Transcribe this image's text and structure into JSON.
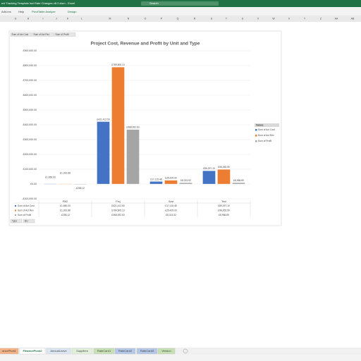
{
  "window": {
    "title": "ect Tracking Template incl Rate Changes v8.2.xlsm - Excel",
    "search": "Search",
    "ribbon_tabs": [
      "Add-ins",
      "Help",
      "PivotTable Analyze",
      "Design"
    ],
    "columns": [
      "G",
      "H",
      "I",
      "J",
      "K",
      "L",
      "M",
      "N",
      "O",
      "P",
      "Q",
      "R",
      "S",
      "T",
      "U",
      "V",
      "W",
      "X",
      "Y",
      "Z",
      "AA",
      "AB"
    ],
    "sheet_tabs": [
      "ancePivot1",
      "FinancePivot2",
      "AnnualLeave",
      "Suppliers",
      "RateCard1",
      "RateCard2",
      "RateCard3",
      "Version"
    ],
    "active_tab": 1,
    "field_buttons": [
      "Sum of Act Cost",
      "Sum of Act Rev",
      "Sum of Profit"
    ],
    "filter_buttons": [
      "Type",
      "BU"
    ]
  },
  "chart_data": {
    "type": "bar",
    "title": "Project Cost, Revenue and Profit by Unit and Type",
    "categories": [
      "PM2",
      "Proj",
      "Sust",
      "Test"
    ],
    "series": [
      {
        "name": "Sum of Act Cost",
        "color": "#4472c4",
        "values": [
          1650,
          421412.5,
          17115.48,
          89297.1
        ],
        "value_labels": [
          "£1,650.00",
          "£421,412.50",
          "£17,115.48",
          "£89,297.10"
        ]
      },
      {
        "name": "Sum of Act Rev",
        "color": "#ed7d31",
        "values": [
          1391.88,
          789505.13,
          25429,
          98265.99
        ],
        "value_labels": [
          "£1,391.88",
          "£789,505.13",
          "£25,429.00",
          "£98,265.99"
        ]
      },
      {
        "name": "Sum of Profit",
        "color": "#a5a5a5",
        "values": [
          -258.12,
          368092.63,
          8313.52,
          8968.89
        ],
        "value_labels": [
          "-£258.12",
          "£368,092.63",
          "£8,313.52",
          "£8,968.89"
        ]
      }
    ],
    "ylim": [
      -100000,
      900000
    ],
    "yticks": [
      {
        "value": -100000,
        "label": "-£100,000.00"
      },
      {
        "value": 0,
        "label": "£0.00"
      },
      {
        "value": 100000,
        "label": "£100,000.00"
      },
      {
        "value": 200000,
        "label": "£200,000.00"
      },
      {
        "value": 300000,
        "label": "£300,000.00"
      },
      {
        "value": 400000,
        "label": "£400,000.00"
      },
      {
        "value": 500000,
        "label": "£500,000.00"
      },
      {
        "value": 600000,
        "label": "£600,000.00"
      },
      {
        "value": 700000,
        "label": "£700,000.00"
      },
      {
        "value": 800000,
        "label": "£800,000.00"
      },
      {
        "value": 900000,
        "label": "£900,000.00"
      }
    ],
    "grid": true,
    "legend": "right",
    "legend_title": "Values",
    "data_table": true
  }
}
